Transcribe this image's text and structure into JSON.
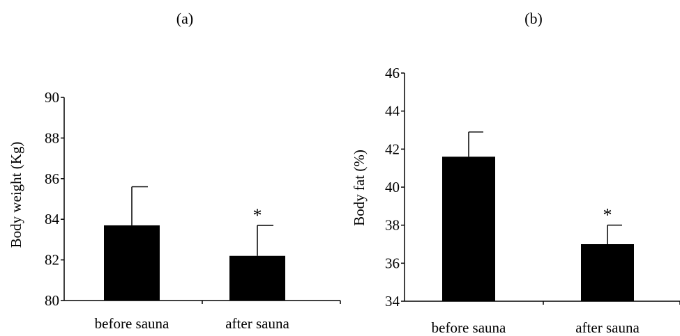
{
  "chart_data": [
    {
      "type": "bar",
      "panel_label": "(a)",
      "categories": [
        "before sauna",
        "after sauna"
      ],
      "values": [
        83.7,
        82.2
      ],
      "error_upper": [
        85.6,
        83.7
      ],
      "significance": [
        "",
        "*"
      ],
      "ylabel": "Body weight (Kg)",
      "ylim": [
        80,
        90
      ],
      "yticks": [
        "80",
        "82",
        "84",
        "86",
        "88",
        "90"
      ],
      "grid": false,
      "colors": {
        "bar": "#000000",
        "axis": "#000000"
      }
    },
    {
      "type": "bar",
      "panel_label": "(b)",
      "categories": [
        "before sauna",
        "after sauna"
      ],
      "values": [
        41.6,
        37.0
      ],
      "error_upper": [
        42.9,
        38.0
      ],
      "significance": [
        "",
        "*"
      ],
      "ylabel": "Body fat (%)",
      "ylim": [
        34,
        46
      ],
      "yticks": [
        "34",
        "36",
        "38",
        "40",
        "42",
        "44",
        "46"
      ],
      "grid": false,
      "colors": {
        "bar": "#000000",
        "axis": "#000000"
      }
    }
  ]
}
